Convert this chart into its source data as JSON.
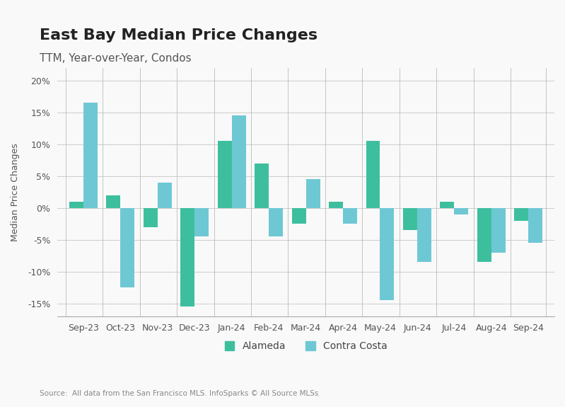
{
  "title": "East Bay Median Price Changes",
  "subtitle": "TTM, Year-over-Year, Condos",
  "ylabel": "Median Price Changes",
  "source": "Source:  All data from the San Francisco MLS. InfoSparks © All Source MLSs",
  "categories": [
    "Sep-23",
    "Oct-23",
    "Nov-23",
    "Dec-23",
    "Jan-24",
    "Feb-24",
    "Mar-24",
    "Apr-24",
    "May-24",
    "Jun-24",
    "Jul-24",
    "Aug-24",
    "Sep-24"
  ],
  "alameda": [
    1.0,
    2.0,
    -3.0,
    -15.5,
    10.5,
    7.0,
    -2.5,
    1.0,
    10.5,
    -3.5,
    1.0,
    -8.5,
    -2.0
  ],
  "contra_costa": [
    16.5,
    -12.5,
    4.0,
    -4.5,
    14.5,
    -4.5,
    4.5,
    -2.5,
    -14.5,
    -8.5,
    -1.0,
    -7.0,
    -5.5
  ],
  "alameda_color": "#3dbf9e",
  "contra_costa_color": "#6ec8d4",
  "background_color": "#f9f9f9",
  "ylim": [
    -17,
    22
  ],
  "yticks": [
    -15,
    -10,
    -5,
    0,
    5,
    10,
    15,
    20
  ],
  "bar_width": 0.38,
  "title_fontsize": 16,
  "subtitle_fontsize": 11,
  "axis_label_fontsize": 9,
  "tick_fontsize": 9,
  "legend_fontsize": 10,
  "source_fontsize": 7.5
}
